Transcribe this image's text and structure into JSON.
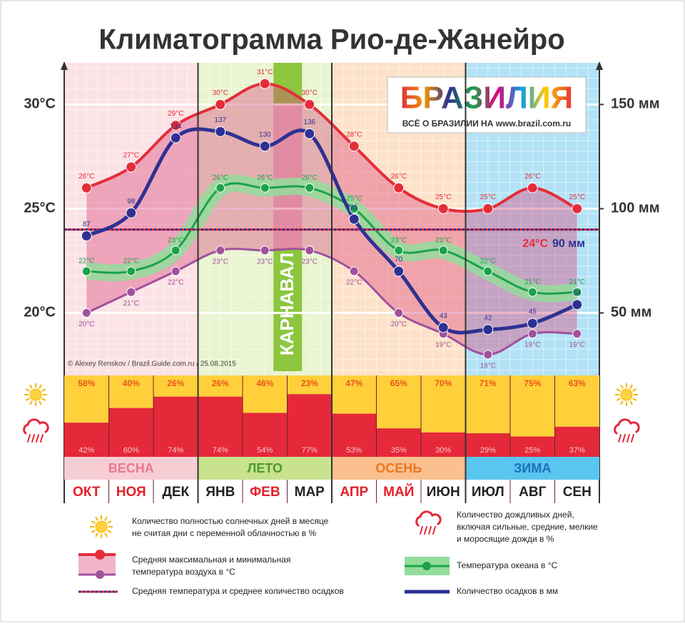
{
  "chart_data": {
    "type": "climatogram",
    "title": "Климатограмма Рио-де-Жанейро",
    "categories": [
      "ОКТ",
      "НОЯ",
      "ДЕК",
      "ЯНВ",
      "ФЕВ",
      "МАР",
      "АПР",
      "МАЙ",
      "ИЮН",
      "ИЮЛ",
      "АВГ",
      "СЕН"
    ],
    "category_colors": [
      "#e4202b",
      "#e4202b",
      "#222222",
      "#222222",
      "#e4202b",
      "#222222",
      "#e4202b",
      "#e4202b",
      "#222222",
      "#222222",
      "#222222",
      "#222222"
    ],
    "seasons": [
      {
        "label": "ВЕСНА",
        "color": "#f7cdd4",
        "chart_color": "#fbe2e5",
        "text_color": "#e9798b"
      },
      {
        "label": "ЛЕТО",
        "color": "#c8e28e",
        "chart_color": "#e9f4d0",
        "text_color": "#4c9a2a"
      },
      {
        "label": "ОСЕНЬ",
        "color": "#fbc08f",
        "chart_color": "#fde2c9",
        "text_color": "#e8771f"
      },
      {
        "label": "ЗИМА",
        "color": "#58c6ef",
        "chart_color": "#b3e2f6",
        "text_color": "#1b6fb8"
      }
    ],
    "ylim": [
      17,
      32
    ],
    "yticks": [
      {
        "value": 30,
        "label": "30°C"
      },
      {
        "value": 25,
        "label": "25°C"
      },
      {
        "value": 20,
        "label": "20°C"
      }
    ],
    "y2lim": [
      20,
      170
    ],
    "y2ticks": [
      {
        "value": 150,
        "label": "150 мм"
      },
      {
        "value": 100,
        "label": "100 мм"
      },
      {
        "value": 50,
        "label": "50 мм"
      }
    ],
    "temperature": {
      "fill": "#d9467a",
      "max": {
        "color": "#e52d3a",
        "values": [
          26,
          27,
          29,
          30,
          31,
          30,
          28,
          26,
          25,
          25,
          26,
          25
        ],
        "value_labels": [
          "26°C",
          "27°C",
          "29°C",
          "30°C",
          "31°C",
          "30°C",
          "28°C",
          "26°C",
          "25°C",
          "25°C",
          "26°C",
          "25°C"
        ]
      },
      "min": {
        "color": "#a0519c",
        "values": [
          20,
          21,
          22,
          23,
          23,
          23,
          22,
          20,
          19,
          18,
          19,
          19
        ],
        "value_labels": [
          "20°C",
          "21°C",
          "22°C",
          "23°C",
          "23°C",
          "23°C",
          "22°C",
          "20°C",
          "19°C",
          "18°C",
          "19°C",
          "19°C"
        ]
      }
    },
    "series": [
      {
        "color": "#1aa34a",
        "band_color": "#93dd9b",
        "axis": "y",
        "values": [
          22,
          22,
          23,
          26,
          26,
          26,
          25,
          23,
          23,
          22,
          21,
          21
        ],
        "value_labels": [
          "22°C",
          "22°C",
          "23°C",
          "26°C",
          "26°C",
          "26°C",
          "25°C",
          "23°C",
          "23°C",
          "22°C",
          "21°C",
          "21°C"
        ]
      },
      {
        "color": "#2e3192",
        "axis": "y2",
        "values": [
          87,
          98,
          134,
          137,
          130,
          136,
          95,
          70,
          43,
          42,
          45,
          54
        ]
      }
    ],
    "sunny": {
      "color": "#ffd03a",
      "label_color": "#e8531a",
      "values": [
        58,
        40,
        26,
        26,
        46,
        23,
        47,
        65,
        70,
        71,
        75,
        63
      ],
      "value_labels": [
        "58%",
        "40%",
        "26%",
        "26%",
        "46%",
        "23%",
        "47%",
        "65%",
        "70%",
        "71%",
        "75%",
        "63%"
      ]
    },
    "rainy": {
      "color": "#e5283a",
      "label_color": "#f9c6cc",
      "values": [
        42,
        60,
        74,
        74,
        54,
        77,
        53,
        35,
        30,
        29,
        25,
        37
      ],
      "value_labels": [
        "42%",
        "60%",
        "74%",
        "74%",
        "54%",
        "77%",
        "53%",
        "35%",
        "30%",
        "29%",
        "25%",
        "37%"
      ]
    },
    "average": {
      "temperature": 24,
      "temperature_label": "24°C",
      "precipitation": 90,
      "precipitation_label": "90 мм"
    },
    "carnival": "КАРНАВАЛ",
    "credit": "© Alexey Renskov / Brazil.Guide.com.ru / 25.08.2015",
    "logo": {
      "name": "БРАЗИЛИЯ",
      "tagline": "ВСЁ О БРАЗИЛИИ НА www.brazil.com.ru"
    },
    "legend": {
      "sunny": [
        "Количество полностью солнечных дней в месяце",
        "не считая дни с переменной облачностью в %"
      ],
      "rainy": [
        "Количество дождливых дней,",
        "включая сильные, средние, мелкие",
        "и моросящие дожди в %"
      ],
      "temperature": [
        "Средняя максимальная и минимальная",
        "температура воздуха в °C"
      ],
      "ocean": "Температура океана в °C",
      "average": "Средняя температура и среднее количество осадков",
      "precipitation": "Количество осадков в мм"
    }
  }
}
